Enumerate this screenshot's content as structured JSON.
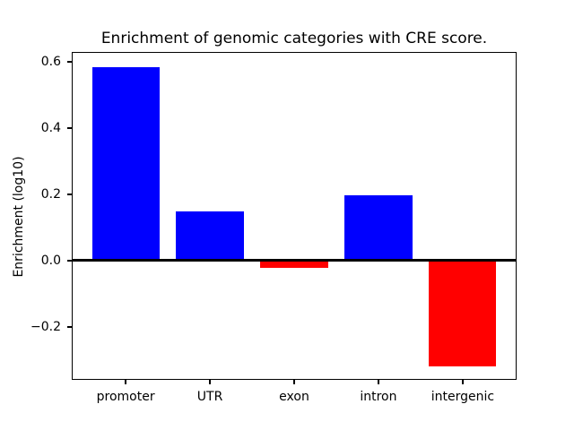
{
  "figure": {
    "background_color": "#ffffff",
    "text_color": "#000000",
    "axis_color": "#000000"
  },
  "chart_data": {
    "type": "bar",
    "title": "Enrichment of genomic categories with CRE score.",
    "xlabel": "",
    "ylabel": "Enrichment (log10)",
    "categories": [
      "promoter",
      "UTR",
      "exon",
      "intron",
      "intergenic"
    ],
    "values": [
      0.585,
      0.148,
      -0.021,
      0.198,
      -0.319
    ],
    "bar_colors": [
      "#0000ff",
      "#0000ff",
      "#ff0000",
      "#0000ff",
      "#ff0000"
    ],
    "positive_color": "#0000ff",
    "negative_color": "#ff0000",
    "yticks": [
      -0.2,
      0.0,
      0.2,
      0.4,
      0.6
    ],
    "ylim": [
      -0.36,
      0.63
    ],
    "xlim": [
      -0.64,
      4.64
    ],
    "bar_width": 0.8,
    "grid": false,
    "legend_position": "none",
    "zero_line": {
      "value": 0.0,
      "color": "#000000"
    }
  }
}
